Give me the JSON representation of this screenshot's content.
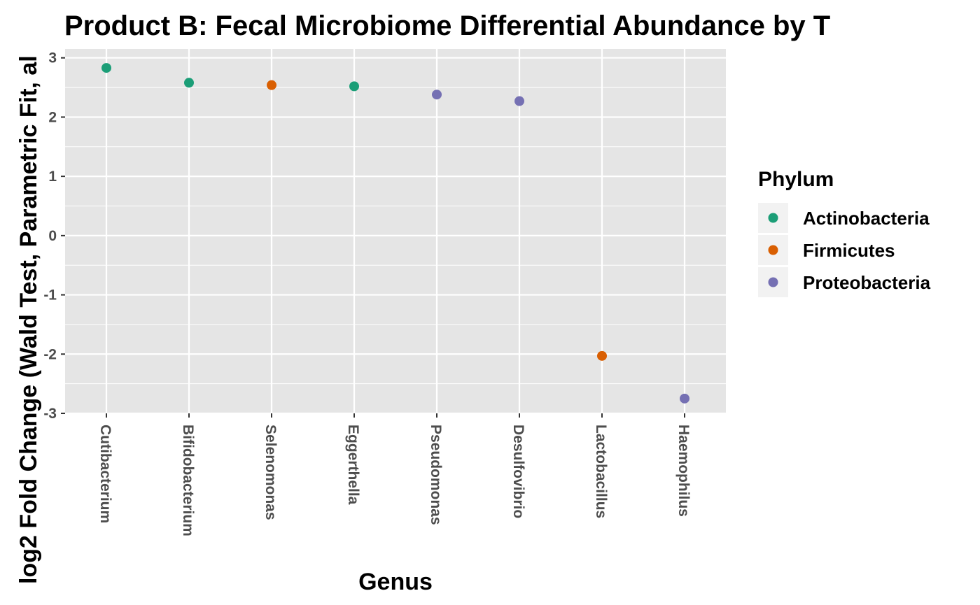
{
  "chart_data": {
    "type": "scatter",
    "title": "Product B: Fecal Microbiome Differential Abundance by T",
    "xlabel": "Genus",
    "ylabel": "log2 Fold Change (Wald Test, Parametric Fit, al",
    "categories": [
      "Cutibacterium",
      "Bifidobacterium",
      "Selenomonas",
      "Eggerthella",
      "Pseudomonas",
      "Desulfovibrio",
      "Lactobacillus",
      "Haemophilus"
    ],
    "ylim": [
      -3,
      3.15
    ],
    "yticks": [
      -3,
      -2,
      -1,
      0,
      1,
      2,
      3
    ],
    "ytick_labels": [
      "-3",
      "-2",
      "-1",
      "0",
      "1",
      "2",
      "3"
    ],
    "grid": true,
    "points": [
      {
        "genus": "Cutibacterium",
        "value": 2.83,
        "phylum": "Actinobacteria"
      },
      {
        "genus": "Bifidobacterium",
        "value": 2.58,
        "phylum": "Actinobacteria"
      },
      {
        "genus": "Selenomonas",
        "value": 2.54,
        "phylum": "Firmicutes"
      },
      {
        "genus": "Eggerthella",
        "value": 2.52,
        "phylum": "Actinobacteria"
      },
      {
        "genus": "Pseudomonas",
        "value": 2.38,
        "phylum": "Proteobacteria"
      },
      {
        "genus": "Desulfovibrio",
        "value": 2.27,
        "phylum": "Proteobacteria"
      },
      {
        "genus": "Lactobacillus",
        "value": -2.03,
        "phylum": "Firmicutes"
      },
      {
        "genus": "Haemophilus",
        "value": -2.75,
        "phylum": "Proteobacteria"
      }
    ],
    "legend": {
      "title": "Phylum",
      "placement": "right",
      "items": [
        {
          "label": "Actinobacteria",
          "color": "#1b9e77"
        },
        {
          "label": "Firmicutes",
          "color": "#d95f02"
        },
        {
          "label": "Proteobacteria",
          "color": "#7570b3"
        }
      ]
    },
    "colors": {
      "panel_background": "#e5e5e5",
      "gridline": "#ffffff"
    }
  }
}
